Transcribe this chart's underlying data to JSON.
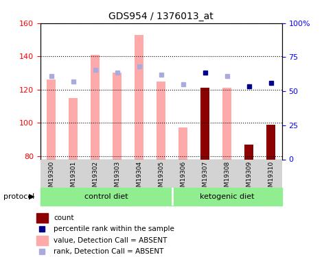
{
  "title": "GDS954 / 1376013_at",
  "samples": [
    "GSM19300",
    "GSM19301",
    "GSM19302",
    "GSM19303",
    "GSM19304",
    "GSM19305",
    "GSM19306",
    "GSM19307",
    "GSM19308",
    "GSM19309",
    "GSM19310"
  ],
  "value_absent": [
    126,
    115,
    141,
    130,
    153,
    125,
    97,
    121,
    121,
    null,
    null
  ],
  "rank_absent": [
    128,
    125,
    132,
    130,
    134,
    129,
    123,
    null,
    128,
    null,
    null
  ],
  "value_count": [
    null,
    null,
    null,
    null,
    null,
    null,
    null,
    121,
    null,
    87,
    99
  ],
  "rank_count": [
    null,
    null,
    null,
    null,
    null,
    null,
    null,
    130,
    null,
    122,
    124
  ],
  "ylim_left": [
    78,
    160
  ],
  "ylim_right": [
    0,
    100
  ],
  "yticks_left": [
    80,
    100,
    120,
    140,
    160
  ],
  "yticks_right": [
    0,
    25,
    50,
    75,
    100
  ],
  "ytick_labels_right": [
    "0",
    "25",
    "50",
    "75",
    "100%"
  ],
  "color_value_absent": "#ffaaaa",
  "color_rank_absent": "#aaaadd",
  "color_count": "#8b0000",
  "color_rank_count": "#00008b",
  "bar_width": 0.4,
  "protocol_label": "protocol",
  "n_control": 6,
  "n_keto": 5
}
